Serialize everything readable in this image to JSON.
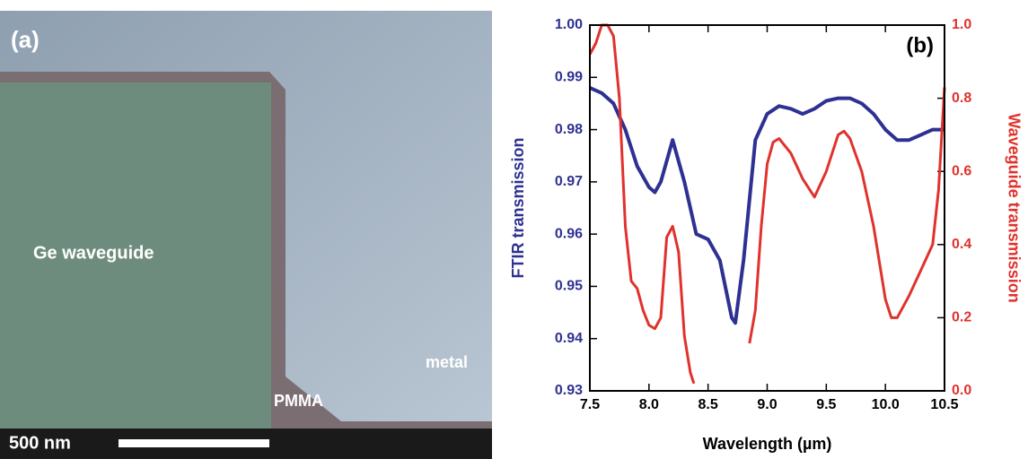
{
  "panel_a": {
    "label": "(a)",
    "waveguide": "Ge waveguide",
    "pmma": "PMMA",
    "metal": "metal",
    "scale_bar": "500 nm"
  },
  "chart_data": {
    "type": "line",
    "annotation": "(b)",
    "x_label": "Wavelength (µm)",
    "y_label": "FTIR transmission",
    "y2_label": "Waveguide transmission",
    "xlim": [
      7.5,
      10.5
    ],
    "xticks": [
      7.5,
      {
        "value": 8,
        "label": "8.0"
      },
      8.5,
      {
        "value": 9,
        "label": "9.0"
      },
      9.5,
      {
        "value": 10,
        "label": "10.0"
      },
      10.5
    ],
    "ylim": [
      0.93,
      1.0
    ],
    "yticks": [
      0.93,
      0.94,
      0.95,
      0.96,
      0.97,
      0.98,
      0.99,
      {
        "value": 1,
        "label": "1.00"
      }
    ],
    "y2lim": [
      0,
      1
    ],
    "y2ticks": [
      {
        "value": 0,
        "label": "0.0"
      },
      0.2,
      0.4,
      0.6,
      0.8,
      {
        "value": 1,
        "label": "1.0"
      }
    ],
    "axis_colors": {
      "y": "#2e3192",
      "y2": "#e0322d"
    },
    "series": [
      {
        "name": "FTIR transmission",
        "color": "#2e3192",
        "axis": "y",
        "x": [
          7.5,
          7.6,
          7.7,
          7.8,
          7.9,
          8.0,
          8.05,
          8.1,
          8.2,
          8.3,
          8.4,
          8.5,
          8.6,
          8.7,
          8.73,
          8.8,
          8.9,
          9.0,
          9.1,
          9.2,
          9.3,
          9.4,
          9.5,
          9.6,
          9.7,
          9.8,
          9.9,
          10.0,
          10.1,
          10.2,
          10.3,
          10.4,
          10.5
        ],
        "values": [
          0.988,
          0.987,
          0.985,
          0.98,
          0.973,
          0.969,
          0.968,
          0.97,
          0.978,
          0.97,
          0.96,
          0.959,
          0.955,
          0.944,
          0.943,
          0.955,
          0.978,
          0.983,
          0.9845,
          0.984,
          0.983,
          0.984,
          0.9855,
          0.986,
          0.986,
          0.985,
          0.983,
          0.98,
          0.978,
          0.978,
          0.979,
          0.98,
          0.98
        ]
      },
      {
        "name": "Waveguide transmission",
        "color": "#e0322d",
        "axis": "y2",
        "x": [
          7.5,
          7.55,
          7.6,
          7.65,
          7.7,
          7.75,
          7.8,
          7.85,
          7.9,
          7.95,
          8.0,
          8.05,
          8.1,
          8.15,
          8.2,
          8.25,
          8.3,
          8.35,
          8.38,
          8.6,
          8.85,
          8.9,
          8.95,
          9.0,
          9.05,
          9.1,
          9.2,
          9.3,
          9.4,
          9.5,
          9.6,
          9.65,
          9.7,
          9.8,
          9.9,
          10.0,
          10.05,
          10.1,
          10.2,
          10.3,
          10.4,
          10.45,
          10.5
        ],
        "values": [
          0.92,
          0.95,
          1.0,
          1.0,
          0.97,
          0.8,
          0.45,
          0.3,
          0.28,
          0.22,
          0.18,
          0.17,
          0.2,
          0.42,
          0.45,
          0.38,
          0.15,
          0.05,
          0.02,
          null,
          0.13,
          0.22,
          0.45,
          0.62,
          0.68,
          0.69,
          0.65,
          0.58,
          0.53,
          0.6,
          0.7,
          0.71,
          0.69,
          0.6,
          0.45,
          0.25,
          0.2,
          0.2,
          0.26,
          0.33,
          0.4,
          0.55,
          0.83
        ]
      }
    ]
  }
}
